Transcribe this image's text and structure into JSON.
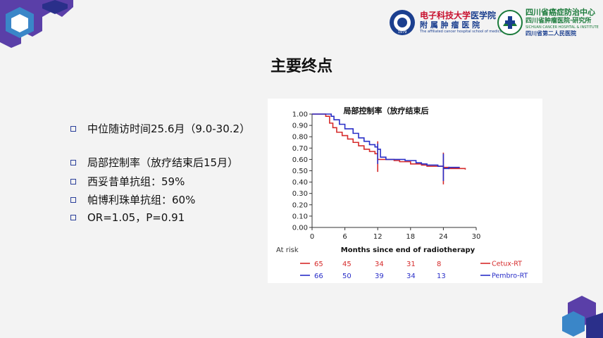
{
  "header": {
    "logo_left": {
      "line1_red": "电子科技大学",
      "line1_blue": "医学院",
      "line2": "附 属 肿 瘤 医 院",
      "line3": "The affiliated cancer hospital school of medicine,UESTC",
      "seal_year": "1979"
    },
    "logo_right": {
      "line1": "四川省癌症防治中心",
      "line2": "四川省肿瘤医院·研究所",
      "line3": "SICHUAN CANCER HOSPITAL & INSTITUTE",
      "line4": "四川省第二人民医院"
    }
  },
  "slide": {
    "title": "主要终点",
    "bullets": [
      "中位随访时间25.6月（9.0-30.2）",
      "局部控制率（放疗结束后15月）",
      "西妥昔单抗组：59%",
      "帕博利珠单抗组：60%",
      "OR=1.05，P=0.91"
    ]
  },
  "colors": {
    "accent_purple": "#5a3fa8",
    "bullet_blue": "#2a3f9a",
    "cetux_red": "#d62b2b",
    "pembro_blue": "#2a2fc8",
    "logo_red": "#c8102e",
    "logo_blue": "#1b3f8f",
    "logo_green": "#1a7a3a"
  },
  "chart_data": {
    "type": "line",
    "title": "局部控制率（放疗结束后",
    "xlabel": "Months since end of radiotherapy",
    "ylabel": "",
    "xlim": [
      0,
      30
    ],
    "ylim": [
      0,
      1
    ],
    "x_ticks": [
      "0",
      "6",
      "12",
      "18",
      "24",
      "30"
    ],
    "y_ticks": [
      "0.00",
      "0.10",
      "0.20",
      "0.30",
      "0.40",
      "0.50",
      "0.60",
      "0.70",
      "0.80",
      "0.90",
      "1.00"
    ],
    "grid": false,
    "legend": "bottom-right",
    "series": [
      {
        "name": "Cetux-RT",
        "color": "#d62b2b",
        "points": [
          [
            0,
            1.0
          ],
          [
            2,
            1.0
          ],
          [
            2.5,
            0.98
          ],
          [
            3.2,
            0.92
          ],
          [
            3.8,
            0.88
          ],
          [
            4.5,
            0.84
          ],
          [
            5.5,
            0.81
          ],
          [
            6.5,
            0.78
          ],
          [
            7.5,
            0.75
          ],
          [
            8.5,
            0.72
          ],
          [
            9.5,
            0.69
          ],
          [
            10.5,
            0.67
          ],
          [
            11.5,
            0.65
          ],
          [
            12,
            0.6
          ],
          [
            14,
            0.6
          ],
          [
            15,
            0.59
          ],
          [
            16,
            0.58
          ],
          [
            18,
            0.56
          ],
          [
            20,
            0.55
          ],
          [
            21,
            0.54
          ],
          [
            24,
            0.53
          ],
          [
            25,
            0.52
          ],
          [
            28,
            0.51
          ]
        ]
      },
      {
        "name": "Pembro-RT",
        "color": "#2a2fc8",
        "points": [
          [
            0,
            1.0
          ],
          [
            3,
            1.0
          ],
          [
            3.5,
            0.98
          ],
          [
            4,
            0.95
          ],
          [
            5,
            0.91
          ],
          [
            6,
            0.87
          ],
          [
            7.5,
            0.83
          ],
          [
            8.5,
            0.79
          ],
          [
            9.5,
            0.76
          ],
          [
            10.5,
            0.73
          ],
          [
            11.5,
            0.71
          ],
          [
            12,
            0.69
          ],
          [
            12.5,
            0.62
          ],
          [
            13.5,
            0.6
          ],
          [
            16,
            0.6
          ],
          [
            17,
            0.59
          ],
          [
            19,
            0.57
          ],
          [
            20,
            0.56
          ],
          [
            21,
            0.55
          ],
          [
            23,
            0.54
          ],
          [
            24,
            0.52
          ],
          [
            25,
            0.53
          ],
          [
            27,
            0.53
          ]
        ]
      }
    ],
    "censor_ticks": [
      {
        "x": 12,
        "from": 0.49,
        "to": 0.76,
        "color": "#d62b2b"
      },
      {
        "x": 12,
        "from": 0.56,
        "to": 0.74,
        "color": "#2a2fc8"
      },
      {
        "x": 24,
        "from": 0.38,
        "to": 0.66,
        "color": "#d62b2b"
      },
      {
        "x": 24,
        "from": 0.41,
        "to": 0.65,
        "color": "#2a2fc8"
      }
    ],
    "at_risk": {
      "label": "At risk",
      "rows": [
        {
          "name": "Cetux-RT",
          "color": "#d62b2b",
          "values": [
            "65",
            "45",
            "34",
            "31",
            "8"
          ]
        },
        {
          "name": "Pembro-RT",
          "color": "#2a2fc8",
          "values": [
            "66",
            "50",
            "39",
            "34",
            "13"
          ]
        }
      ]
    }
  }
}
